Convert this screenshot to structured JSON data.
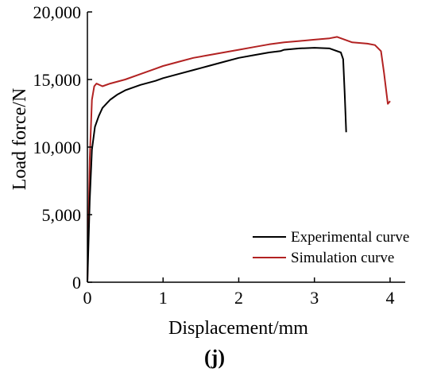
{
  "chart_data": {
    "type": "line",
    "xlabel": "Displacement/mm",
    "ylabel": "Load force/N",
    "panel_label": "(j)",
    "xlim": [
      0,
      4.2
    ],
    "ylim": [
      0,
      20000
    ],
    "xticks": [
      0,
      1,
      2,
      3,
      4
    ],
    "xtick_labels": [
      "0",
      "1",
      "2",
      "3",
      "4"
    ],
    "yticks": [
      0,
      5000,
      10000,
      15000,
      20000
    ],
    "ytick_labels": [
      "0",
      "5,000",
      "10,000",
      "15,000",
      "20,000"
    ],
    "grid": false,
    "legend_position": "bottom-right",
    "series": [
      {
        "name": "Experimental curve",
        "color": "#000000",
        "x": [
          0,
          0.03,
          0.06,
          0.1,
          0.15,
          0.2,
          0.3,
          0.4,
          0.5,
          0.7,
          0.9,
          1.0,
          1.2,
          1.4,
          1.6,
          1.8,
          2.0,
          2.2,
          2.4,
          2.55,
          2.6,
          2.8,
          3.0,
          3.2,
          3.35,
          3.38,
          3.4,
          3.41,
          3.42
        ],
        "y": [
          0,
          6000,
          9800,
          11500,
          12300,
          12900,
          13500,
          13900,
          14200,
          14600,
          14900,
          15100,
          15400,
          15700,
          16000,
          16300,
          16600,
          16800,
          17000,
          17100,
          17200,
          17300,
          17350,
          17300,
          17000,
          16500,
          14000,
          12500,
          11100
        ]
      },
      {
        "name": "Simulation curve",
        "color": "#b22222",
        "x": [
          0,
          0.03,
          0.06,
          0.09,
          0.12,
          0.2,
          0.3,
          0.5,
          0.7,
          0.9,
          1.0,
          1.2,
          1.4,
          1.6,
          1.8,
          2.0,
          2.2,
          2.4,
          2.6,
          2.8,
          3.0,
          3.2,
          3.3,
          3.5,
          3.7,
          3.8,
          3.88,
          3.92,
          3.95,
          3.97,
          4.0
        ],
        "y": [
          0,
          9000,
          13500,
          14500,
          14700,
          14500,
          14700,
          15000,
          15400,
          15800,
          16000,
          16300,
          16600,
          16800,
          17000,
          17200,
          17400,
          17600,
          17750,
          17850,
          17950,
          18050,
          18150,
          17750,
          17650,
          17550,
          17100,
          15500,
          14100,
          13200,
          13400
        ]
      }
    ]
  }
}
